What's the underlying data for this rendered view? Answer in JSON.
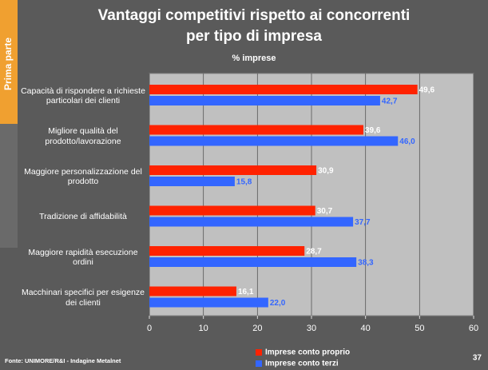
{
  "side_label": "Prima parte",
  "source": "Fonte: UNIMORE/R&I - Indagine Metalnet",
  "page_number": 37,
  "chart_data": {
    "type": "bar",
    "orientation": "horizontal",
    "title": "Vantaggi competitivi rispetto ai concorrenti",
    "title_line2": "per tipo di impresa",
    "subtitle": "% imprese",
    "categories": [
      "Capacità di rispondere a richieste particolari dei clienti",
      "Migliore qualità del prodotto/lavorazione",
      "Maggiore personalizzazione del prodotto",
      "Tradizione di affidabilità",
      "Maggiore rapidità esecuzione ordini",
      "Macchinari specifici per esigenze dei clienti"
    ],
    "series": [
      {
        "name": "Imprese conto proprio",
        "color": "#ff2200",
        "label_color": "#ffffff",
        "values": [
          49.6,
          39.6,
          30.9,
          30.7,
          28.7,
          16.1
        ],
        "value_labels": [
          "49,6",
          "39,6",
          "30,9",
          "30,7",
          "28,7",
          "16,1"
        ]
      },
      {
        "name": "Imprese conto terzi",
        "color": "#3366ff",
        "label_color": "#3366ff",
        "values": [
          42.7,
          46.0,
          15.8,
          37.7,
          38.3,
          22.0
        ],
        "value_labels": [
          "42,7",
          "46,0",
          "15,8",
          "37,7",
          "38,3",
          "22,0"
        ]
      }
    ],
    "xlim": [
      0,
      60
    ],
    "xticks": [
      0,
      10,
      20,
      30,
      40,
      50,
      60
    ],
    "grid": true
  }
}
